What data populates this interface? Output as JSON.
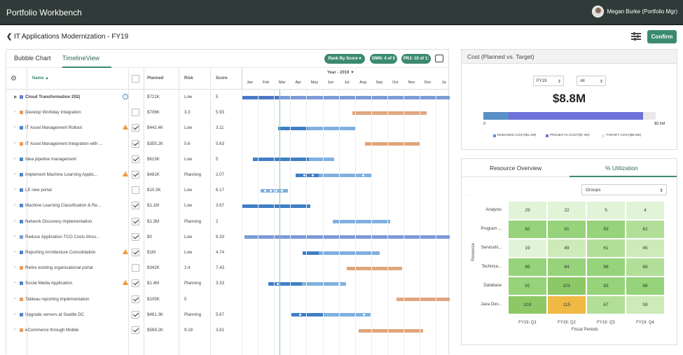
{
  "app": {
    "title": "Portfolio Workbench",
    "user": "Megan Burke (Portfolio Mgr)"
  },
  "header": {
    "back": "❮",
    "title": "IT Applications Modernization - FY19",
    "confirm": "Confirm"
  },
  "left": {
    "tabs": [
      "Bubble Chart",
      "TimelineView"
    ],
    "rank": "Rank By Score",
    "dmn": "DMN: 4 of 5",
    "prj": "PRJ: 10 of 1:",
    "columns": {
      "name": "Name ▲",
      "planned": "Planned",
      "risk": "Risk",
      "score": "Score"
    },
    "year": "Year - 2019 ▼",
    "months": [
      "Jan",
      "Feb",
      "Mar",
      "Apr",
      "May",
      "Jun",
      "Jul",
      "Aug",
      "Sep",
      "Oct",
      "Nov",
      "Dec",
      "Ja"
    ],
    "rows": [
      {
        "chev": "▶",
        "name": "Cloud Transformation 202(",
        "color": "#5b7fd1",
        "icon": "info",
        "checked": null,
        "planned": "$721K",
        "risk": "Low",
        "score": "5"
      },
      {
        "chev": "›",
        "name": "Develop Workday Integration",
        "color": "#e89a5c",
        "icon": null,
        "checked": false,
        "planned": "$706K",
        "risk": "3.3",
        "score": "5.93"
      },
      {
        "chev": "›",
        "name": "IT Asset Management Rollout",
        "color": "#4a86c8",
        "icon": "warn",
        "checked": true,
        "planned": "$442.4K",
        "risk": "Low",
        "score": "3.11"
      },
      {
        "chev": "›",
        "name": "IT Asset Management integration with ...",
        "color": "#e89a5c",
        "icon": null,
        "checked": true,
        "planned": "$355.2K",
        "risk": "5.6",
        "score": "5.63"
      },
      {
        "chev": "›",
        "name": "Idea pipeline management",
        "color": "#4a86c8",
        "icon": null,
        "checked": true,
        "planned": "$615K",
        "risk": "Low",
        "score": "5"
      },
      {
        "chev": "›",
        "name": "Implement Machine Learning Applic...",
        "color": "#4a86c8",
        "icon": "warn",
        "checked": true,
        "planned": "$481K",
        "risk": "Planning",
        "score": "2.07"
      },
      {
        "chev": "›",
        "name": "LE new portal",
        "color": "#4a86c8",
        "icon": null,
        "checked": false,
        "planned": "$10.3K",
        "risk": "Low",
        "score": "6.17"
      },
      {
        "chev": "›",
        "name": "Machine Learning Classification & Re...",
        "color": "#4a86c8",
        "icon": null,
        "checked": true,
        "planned": "$1.1M",
        "risk": "Low",
        "score": "3.67"
      },
      {
        "chev": "›",
        "name": "Network Discovery implementation",
        "color": "#4a86c8",
        "icon": null,
        "checked": true,
        "planned": "$1.3M",
        "risk": "Planning",
        "score": "2"
      },
      {
        "chev": "›",
        "name": "Reduce Application TCO Costs throu...",
        "color": "#7b9ad8",
        "icon": null,
        "checked": true,
        "planned": "$0",
        "risk": "Low",
        "score": "6.33"
      },
      {
        "chev": "›",
        "name": "Reporting Architecture Consolidation",
        "color": "#4a86c8",
        "icon": "warn",
        "checked": true,
        "planned": "$1M",
        "risk": "Low",
        "score": "4.74"
      },
      {
        "chev": "›",
        "name": "Retire existing organisational portal",
        "color": "#e89a5c",
        "icon": null,
        "checked": false,
        "planned": "$342K",
        "risk": "2.4",
        "score": "7.43"
      },
      {
        "chev": "›",
        "name": "Social Media Application",
        "color": "#4a86c8",
        "icon": "warn",
        "checked": true,
        "planned": "$1.4M",
        "risk": "Planning",
        "score": "3.33"
      },
      {
        "chev": "›",
        "name": "Tableau reporting implementation",
        "color": "#e89a5c",
        "icon": null,
        "checked": true,
        "planned": "$105K",
        "risk": "5",
        "score": ""
      },
      {
        "chev": "›",
        "name": "Upgrade servers at Seattle DC",
        "color": "#4a86c8",
        "icon": null,
        "checked": true,
        "planned": "$461.3K",
        "risk": "Planning",
        "score": "5.67"
      },
      {
        "chev": "›",
        "name": "eCommerce through Mobile",
        "color": "#e89a5c",
        "icon": null,
        "checked": true,
        "planned": "$569.2K",
        "risk": "9.18",
        "score": "3.81"
      }
    ]
  },
  "cost": {
    "title": "Cost (Planned vs. Target)",
    "fy": "FY19",
    "all": "All",
    "total": "$8.8M",
    "min": "0",
    "max": "$9.5M",
    "segments": [
      {
        "label": "DEMANDS COST($1.4M)",
        "value": 1.4,
        "color": "#5b8fc8"
      },
      {
        "label": "PROJECTS COST($7.4M)",
        "value": 7.4,
        "color": "#6e72d8"
      },
      {
        "label": "TARGET COST($9.5M)",
        "value": 9.5,
        "color": "#e6e6e6"
      }
    ]
  },
  "util": {
    "tabs": [
      "Resource Overview",
      "% Utilization"
    ],
    "groups": "Groups",
    "dots": ". . . .",
    "ylabel": "Resource",
    "xlabel": "Fiscal Periods",
    "columns": [
      "FY19: Q1",
      "FY19: Q2",
      "FY19: Q3",
      "FY19: Q4"
    ],
    "rows": [
      {
        "label": "Analysts",
        "values": [
          "29",
          "22",
          "5",
          "4"
        ]
      },
      {
        "label": "Program ...",
        "values": [
          "82",
          "91",
          "93",
          "62"
        ]
      },
      {
        "label": "ServiceN...",
        "values": [
          "19",
          "49",
          "61",
          "45"
        ]
      },
      {
        "label": "Technica...",
        "values": [
          "86",
          "84",
          "98",
          "69"
        ]
      },
      {
        "label": "Database",
        "values": [
          "91",
          "101",
          "83",
          "88"
        ]
      },
      {
        "label": "Java Dev...",
        "values": [
          "103",
          "115",
          "67",
          "59"
        ]
      }
    ]
  }
}
